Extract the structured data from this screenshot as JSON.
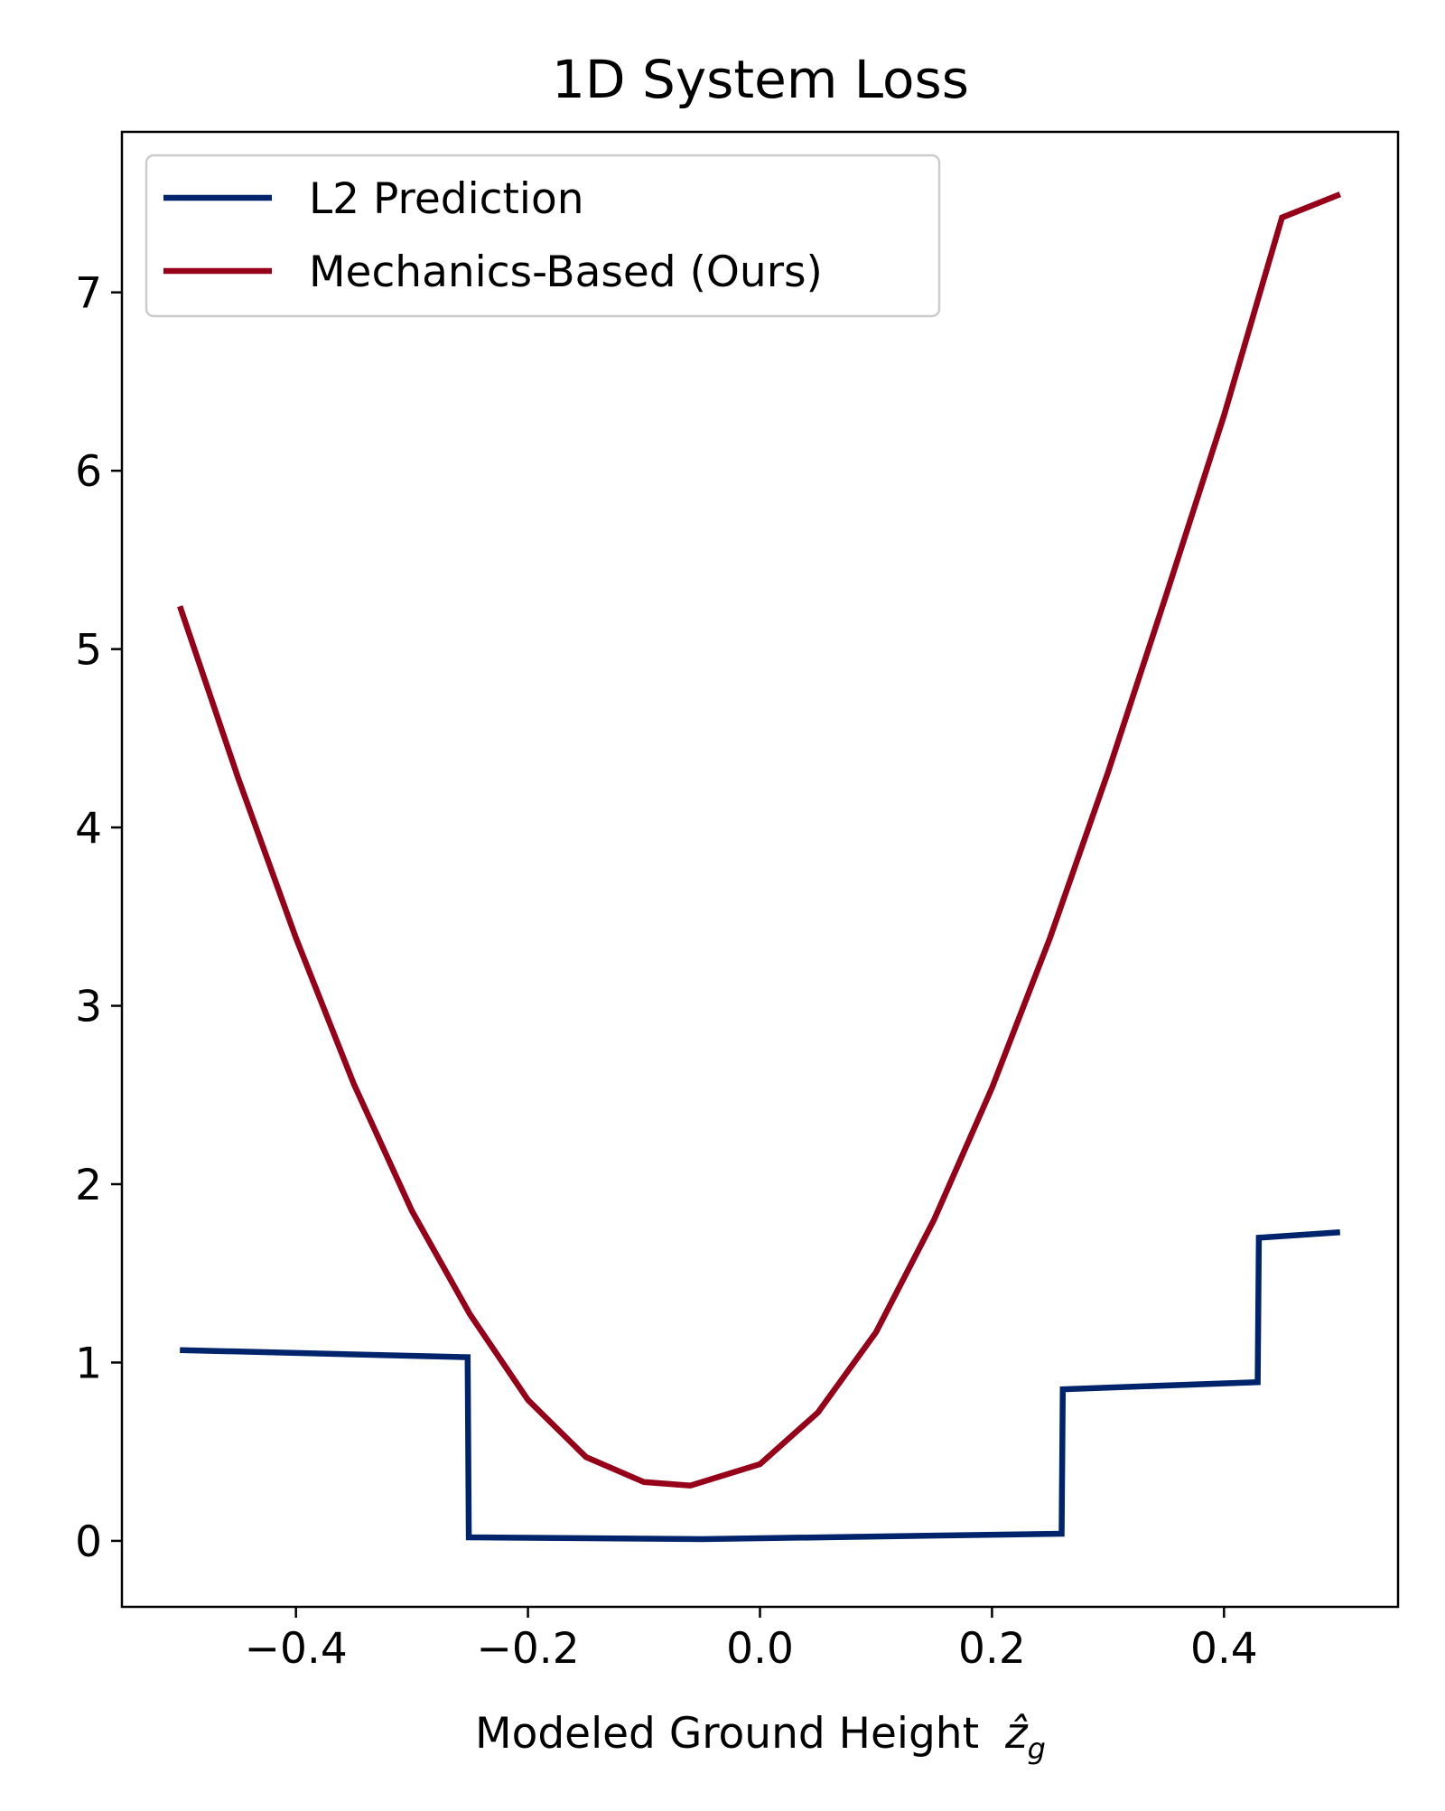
{
  "chart_data": {
    "type": "line",
    "title": "1D System Loss",
    "xlabel": "Modeled Ground Height",
    "xlabel_math": "ẑ",
    "xlabel_math_sub": "g",
    "ylabel": "",
    "xlim": [
      -0.55,
      0.55
    ],
    "ylim": [
      -0.37,
      7.9
    ],
    "x_ticks": [
      -0.4,
      -0.2,
      0.0,
      0.2,
      0.4
    ],
    "x_tick_labels": [
      "−0.4",
      "−0.2",
      "0.0",
      "0.2",
      "0.4"
    ],
    "y_ticks": [
      0,
      1,
      2,
      3,
      4,
      5,
      6,
      7
    ],
    "y_tick_labels": [
      "0",
      "1",
      "2",
      "3",
      "4",
      "5",
      "6",
      "7"
    ],
    "grid": false,
    "legend_position": "top-left",
    "series": [
      {
        "name": "L2 Prediction",
        "color": "#00246b",
        "x": [
          -0.5,
          -0.252,
          -0.251,
          -0.05,
          0.26,
          0.261,
          0.429,
          0.43,
          0.5
        ],
        "y": [
          1.07,
          1.03,
          0.02,
          0.01,
          0.04,
          0.85,
          0.89,
          1.7,
          1.73
        ]
      },
      {
        "name": "Mechanics-Based (Ours)",
        "color": "#960018",
        "x": [
          -0.5,
          -0.45,
          -0.4,
          -0.35,
          -0.3,
          -0.25,
          -0.2,
          -0.15,
          -0.1,
          -0.06,
          0.0,
          0.05,
          0.1,
          0.15,
          0.2,
          0.25,
          0.3,
          0.35,
          0.4,
          0.45,
          0.5
        ],
        "y": [
          5.24,
          4.28,
          3.38,
          2.56,
          1.85,
          1.27,
          0.79,
          0.47,
          0.33,
          0.31,
          0.43,
          0.72,
          1.17,
          1.8,
          2.54,
          3.38,
          4.31,
          5.3,
          6.31,
          7.42,
          7.55
        ]
      }
    ]
  }
}
